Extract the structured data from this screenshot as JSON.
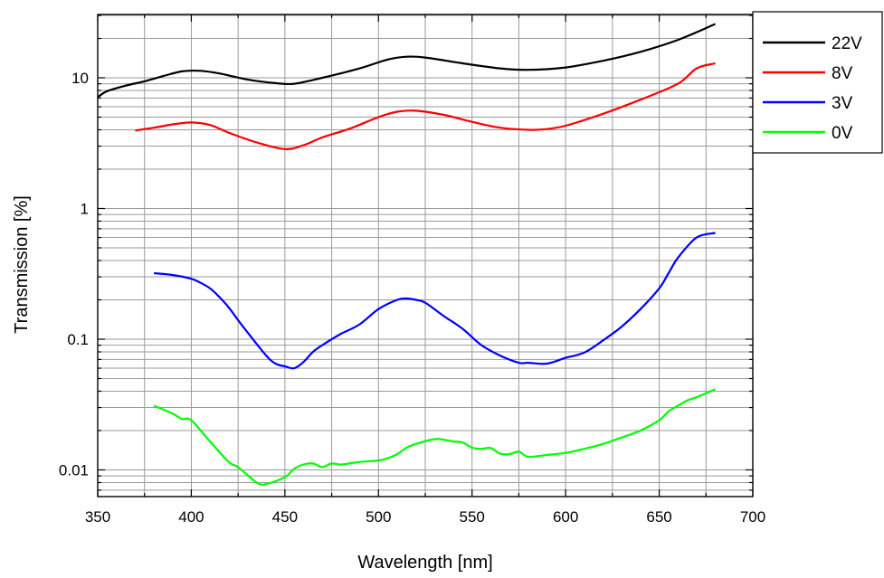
{
  "chart_data": {
    "type": "line",
    "xlabel": "Wavelength [nm]",
    "ylabel": "Transmission [%]",
    "xlim": [
      350,
      700
    ],
    "ylim": [
      0.006,
      30
    ],
    "yscale": "log",
    "grid": true,
    "legend_position": "top-right",
    "x_ticks": [
      350,
      400,
      450,
      500,
      550,
      600,
      650,
      700
    ],
    "y_ticks": [
      0.01,
      0.1,
      1,
      10
    ],
    "y_tick_labels": [
      "0.01",
      "0.1",
      "1",
      "10"
    ],
    "series": [
      {
        "name": "22V",
        "color": "#000000",
        "x": [
          350,
          355,
          365,
          375,
          385,
          395,
          405,
          415,
          430,
          445,
          455,
          470,
          490,
          505,
          515,
          525,
          545,
          565,
          580,
          600,
          620,
          640,
          660,
          680
        ],
        "y": [
          7.1,
          7.9,
          8.7,
          9.4,
          10.3,
          11.2,
          11.3,
          10.8,
          9.7,
          9.1,
          9.0,
          10.0,
          11.8,
          13.8,
          14.5,
          14.3,
          12.9,
          11.8,
          11.5,
          12.0,
          13.5,
          15.8,
          19.5,
          25.8
        ]
      },
      {
        "name": "8V",
        "color": "#ff0000",
        "x": [
          370,
          380,
          390,
          400,
          410,
          420,
          435,
          450,
          460,
          470,
          485,
          500,
          510,
          520,
          535,
          550,
          565,
          580,
          590,
          600,
          620,
          640,
          660,
          670,
          680
        ],
        "y": [
          3.95,
          4.15,
          4.4,
          4.55,
          4.35,
          3.8,
          3.2,
          2.85,
          3.05,
          3.5,
          4.1,
          5.0,
          5.5,
          5.6,
          5.2,
          4.6,
          4.15,
          4.0,
          4.05,
          4.3,
          5.3,
          6.8,
          9.0,
          11.8,
          12.9
        ]
      },
      {
        "name": "3V",
        "color": "#0000ff",
        "x": [
          380,
          390,
          400,
          405,
          410,
          415,
          420,
          425,
          430,
          440,
          445,
          450,
          455,
          460,
          465,
          470,
          475,
          480,
          490,
          500,
          510,
          515,
          520,
          525,
          535,
          545,
          555,
          565,
          575,
          580,
          590,
          600,
          610,
          620,
          630,
          640,
          650,
          655,
          660,
          670,
          680
        ],
        "y": [
          0.32,
          0.31,
          0.29,
          0.27,
          0.245,
          0.21,
          0.175,
          0.14,
          0.113,
          0.075,
          0.065,
          0.062,
          0.06,
          0.067,
          0.08,
          0.09,
          0.1,
          0.11,
          0.13,
          0.17,
          0.2,
          0.205,
          0.2,
          0.19,
          0.15,
          0.12,
          0.09,
          0.075,
          0.066,
          0.066,
          0.065,
          0.072,
          0.079,
          0.098,
          0.125,
          0.17,
          0.245,
          0.32,
          0.42,
          0.6,
          0.65
        ]
      },
      {
        "name": "0V",
        "color": "#00ff00",
        "x": [
          380,
          390,
          395,
          400,
          410,
          420,
          425,
          435,
          440,
          450,
          455,
          460,
          465,
          470,
          475,
          480,
          490,
          500,
          505,
          510,
          515,
          520,
          530,
          535,
          540,
          545,
          550,
          555,
          560,
          565,
          570,
          575,
          580,
          590,
          600,
          610,
          620,
          630,
          640,
          650,
          655,
          660,
          665,
          670,
          680
        ],
        "y": [
          0.031,
          0.027,
          0.0245,
          0.024,
          0.0165,
          0.0115,
          0.0105,
          0.008,
          0.0078,
          0.0088,
          0.0102,
          0.011,
          0.0112,
          0.0105,
          0.0112,
          0.011,
          0.0115,
          0.0118,
          0.0123,
          0.0132,
          0.0148,
          0.0158,
          0.0172,
          0.017,
          0.0165,
          0.0162,
          0.0148,
          0.0145,
          0.0147,
          0.0133,
          0.0132,
          0.0138,
          0.0126,
          0.013,
          0.0135,
          0.0145,
          0.0158,
          0.0177,
          0.02,
          0.024,
          0.028,
          0.031,
          0.034,
          0.036,
          0.0415
        ]
      }
    ]
  }
}
